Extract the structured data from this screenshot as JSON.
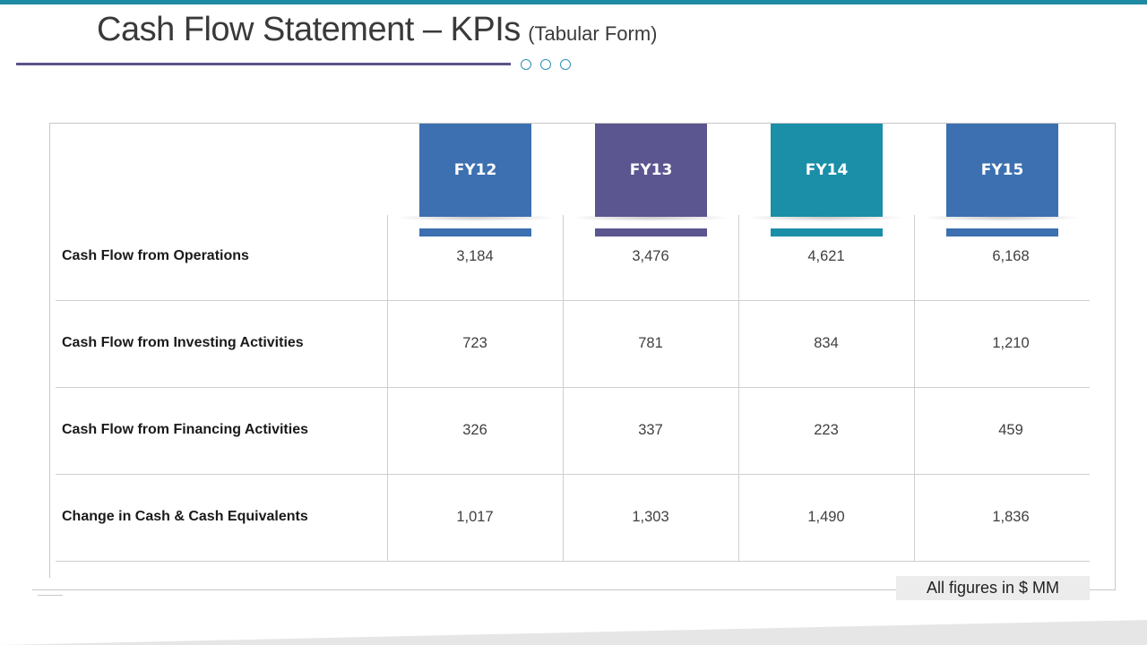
{
  "title": {
    "main": "Cash Flow Statement – KPIs",
    "sub": "(Tabular Form)"
  },
  "columns": [
    {
      "label": "FY12",
      "color": "#3c70b0"
    },
    {
      "label": "FY13",
      "color": "#5b5590"
    },
    {
      "label": "FY14",
      "color": "#1b8ea8"
    },
    {
      "label": "FY15",
      "color": "#3c70b0"
    }
  ],
  "rows": [
    {
      "label": "Cash Flow from Operations",
      "values": [
        "3,184",
        "3,476",
        "4,621",
        "6,168"
      ]
    },
    {
      "label": "Cash Flow from Investing Activities",
      "values": [
        "723",
        "781",
        "834",
        "1,210"
      ]
    },
    {
      "label": "Cash Flow from Financing Activities",
      "values": [
        "326",
        "337",
        "223",
        "459"
      ]
    },
    {
      "label": "Change in Cash & Cash Equivalents",
      "values": [
        "1,017",
        "1,303",
        "1,490",
        "1,836"
      ]
    }
  ],
  "note": "All figures in $ MM",
  "colors": {
    "accent_top": "#1f8aa3",
    "title_rule": "#5b5488",
    "dot_outline": "#2f8fb2"
  }
}
